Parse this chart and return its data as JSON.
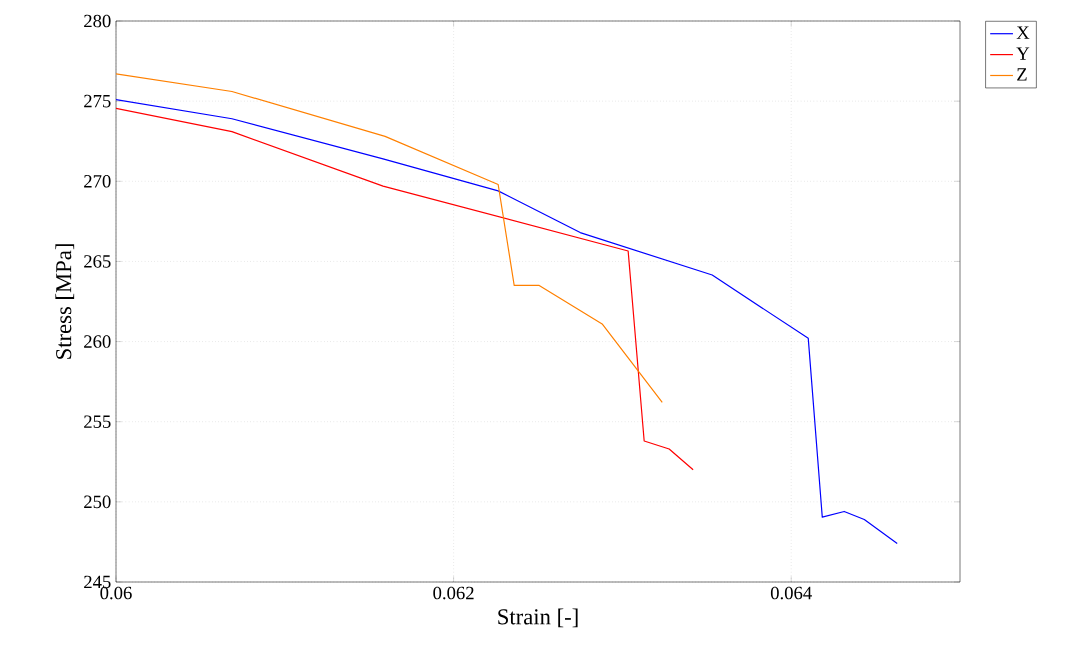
{
  "chart_data": {
    "type": "line",
    "xlabel": "Strain [-]",
    "ylabel": "Stress [MPa]",
    "xlim": [
      0.06,
      0.065
    ],
    "ylim": [
      245,
      280
    ],
    "xticks": [
      0.06,
      0.062,
      0.064
    ],
    "yticks": [
      245,
      250,
      255,
      260,
      265,
      270,
      275,
      280
    ],
    "grid": true,
    "legend": "top right",
    "line_style": "solid",
    "series": [
      {
        "name": "X",
        "color": "#0000ff",
        "x": [
          0.06,
          0.060687,
          0.061582,
          0.062264,
          0.06275,
          0.063532,
          0.064101,
          0.064184,
          0.064314,
          0.064433,
          0.064628
        ],
        "values": [
          275.1,
          273.9,
          271.4,
          269.4,
          266.8,
          264.15,
          260.2,
          249.05,
          249.4,
          248.9,
          247.4
        ]
      },
      {
        "name": "Y",
        "color": "#ff0000",
        "x": [
          0.06,
          0.060687,
          0.061582,
          0.063034,
          0.063129,
          0.063277,
          0.063419
        ],
        "values": [
          274.55,
          273.1,
          269.7,
          265.65,
          253.8,
          253.3,
          252.0
        ]
      },
      {
        "name": "Z",
        "color": "#ff8000",
        "x": [
          0.06,
          0.060687,
          0.061594,
          0.062264,
          0.062359,
          0.062507,
          0.06288,
          0.063236
        ],
        "values": [
          276.7,
          275.6,
          272.8,
          269.8,
          263.5,
          263.5,
          261.1,
          256.2
        ]
      }
    ]
  }
}
